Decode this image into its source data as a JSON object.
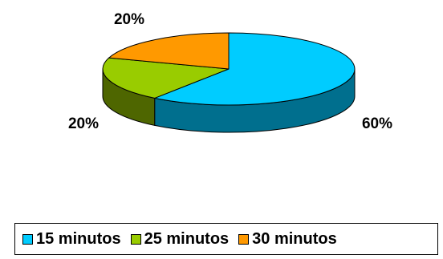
{
  "chart_data": {
    "type": "pie",
    "variant": "3d",
    "categories": [
      "15 minutos",
      "25 minutos",
      "30 minutos"
    ],
    "values": [
      60,
      20,
      20
    ],
    "data_labels": [
      "60%",
      "20%",
      "20%"
    ],
    "colors": [
      "#00CCFF",
      "#99CC00",
      "#FF9900"
    ],
    "side_colors": [
      "#006F8E",
      "#4E6600",
      "#8A5200"
    ],
    "edge_color": "#000000",
    "title": "",
    "legend_position": "bottom"
  }
}
